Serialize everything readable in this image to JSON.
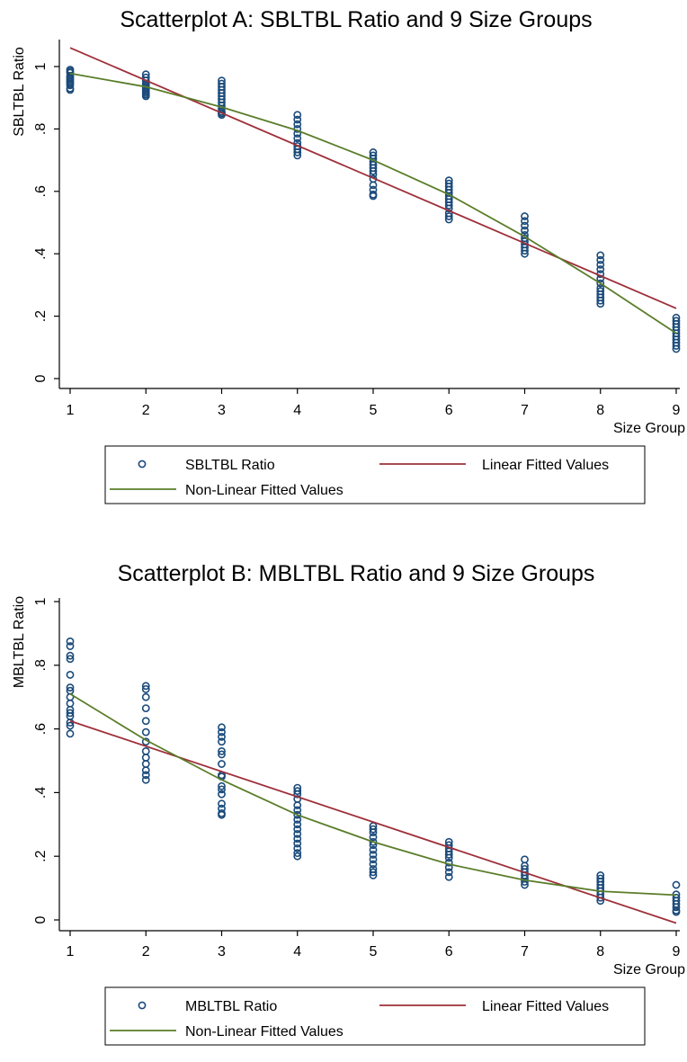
{
  "colors": {
    "scatter": "#1a4a7a",
    "linear": "#9e2f3a",
    "nonlinear": "#5a7d2a",
    "axis": "#000000",
    "background": "#ffffff"
  },
  "chart_data": [
    {
      "type": "scatter",
      "title": "Scatterplot A: SBLTBL Ratio and 9 Size Groups",
      "xlabel": "Size Group",
      "ylabel": "SBLTBL Ratio",
      "xlim": [
        1,
        9
      ],
      "ylim": [
        0,
        1
      ],
      "xticks": [
        "1",
        "2",
        "3",
        "4",
        "5",
        "6",
        "7",
        "8",
        "9"
      ],
      "yticks": [
        "0",
        ".2",
        ".4",
        ".6",
        ".8",
        "1"
      ],
      "grid": false,
      "legend": {
        "placement": "bottom",
        "entries": [
          "SBLTBL Ratio",
          "Linear Fitted Values",
          "Non-Linear Fitted Values"
        ]
      },
      "series": [
        {
          "name": "SBLTBL Ratio",
          "kind": "scatter",
          "points": [
            [
              1,
              0.99
            ],
            [
              1,
              0.985
            ],
            [
              1,
              0.98
            ],
            [
              1,
              0.97
            ],
            [
              1,
              0.965
            ],
            [
              1,
              0.96
            ],
            [
              1,
              0.955
            ],
            [
              1,
              0.95
            ],
            [
              1,
              0.945
            ],
            [
              1,
              0.94
            ],
            [
              1,
              0.93
            ],
            [
              1,
              0.925
            ],
            [
              2,
              0.975
            ],
            [
              2,
              0.965
            ],
            [
              2,
              0.955
            ],
            [
              2,
              0.945
            ],
            [
              2,
              0.94
            ],
            [
              2,
              0.935
            ],
            [
              2,
              0.93
            ],
            [
              2,
              0.925
            ],
            [
              2,
              0.92
            ],
            [
              2,
              0.915
            ],
            [
              2,
              0.91
            ],
            [
              2,
              0.905
            ],
            [
              3,
              0.955
            ],
            [
              3,
              0.945
            ],
            [
              3,
              0.935
            ],
            [
              3,
              0.925
            ],
            [
              3,
              0.915
            ],
            [
              3,
              0.905
            ],
            [
              3,
              0.895
            ],
            [
              3,
              0.885
            ],
            [
              3,
              0.875
            ],
            [
              3,
              0.865
            ],
            [
              3,
              0.855
            ],
            [
              3,
              0.85
            ],
            [
              3,
              0.845
            ],
            [
              4,
              0.845
            ],
            [
              4,
              0.83
            ],
            [
              4,
              0.815
            ],
            [
              4,
              0.8
            ],
            [
              4,
              0.785
            ],
            [
              4,
              0.77
            ],
            [
              4,
              0.755
            ],
            [
              4,
              0.745
            ],
            [
              4,
              0.735
            ],
            [
              4,
              0.725
            ],
            [
              4,
              0.715
            ],
            [
              5,
              0.725
            ],
            [
              5,
              0.715
            ],
            [
              5,
              0.705
            ],
            [
              5,
              0.695
            ],
            [
              5,
              0.685
            ],
            [
              5,
              0.675
            ],
            [
              5,
              0.665
            ],
            [
              5,
              0.655
            ],
            [
              5,
              0.64
            ],
            [
              5,
              0.62
            ],
            [
              5,
              0.605
            ],
            [
              5,
              0.59
            ],
            [
              5,
              0.585
            ],
            [
              6,
              0.635
            ],
            [
              6,
              0.625
            ],
            [
              6,
              0.615
            ],
            [
              6,
              0.605
            ],
            [
              6,
              0.595
            ],
            [
              6,
              0.585
            ],
            [
              6,
              0.575
            ],
            [
              6,
              0.565
            ],
            [
              6,
              0.555
            ],
            [
              6,
              0.545
            ],
            [
              6,
              0.53
            ],
            [
              6,
              0.52
            ],
            [
              6,
              0.51
            ],
            [
              7,
              0.52
            ],
            [
              7,
              0.505
            ],
            [
              7,
              0.49
            ],
            [
              7,
              0.475
            ],
            [
              7,
              0.46
            ],
            [
              7,
              0.45
            ],
            [
              7,
              0.44
            ],
            [
              7,
              0.43
            ],
            [
              7,
              0.42
            ],
            [
              7,
              0.41
            ],
            [
              7,
              0.4
            ],
            [
              8,
              0.395
            ],
            [
              8,
              0.38
            ],
            [
              8,
              0.365
            ],
            [
              8,
              0.35
            ],
            [
              8,
              0.335
            ],
            [
              8,
              0.32
            ],
            [
              8,
              0.305
            ],
            [
              8,
              0.29
            ],
            [
              8,
              0.28
            ],
            [
              8,
              0.27
            ],
            [
              8,
              0.26
            ],
            [
              8,
              0.25
            ],
            [
              8,
              0.24
            ],
            [
              9,
              0.195
            ],
            [
              9,
              0.185
            ],
            [
              9,
              0.175
            ],
            [
              9,
              0.165
            ],
            [
              9,
              0.155
            ],
            [
              9,
              0.145
            ],
            [
              9,
              0.135
            ],
            [
              9,
              0.125
            ],
            [
              9,
              0.115
            ],
            [
              9,
              0.105
            ],
            [
              9,
              0.095
            ]
          ]
        },
        {
          "name": "Linear Fitted Values",
          "kind": "line",
          "x": [
            1,
            9
          ],
          "y": [
            1.06,
            0.225
          ]
        },
        {
          "name": "Non-Linear Fitted Values",
          "kind": "line",
          "x": [
            1,
            2,
            3,
            4,
            5,
            6,
            7,
            8,
            9
          ],
          "y": [
            0.978,
            0.935,
            0.87,
            0.795,
            0.7,
            0.59,
            0.455,
            0.305,
            0.145
          ]
        }
      ]
    },
    {
      "type": "scatter",
      "title": "Scatterplot B: MBLTBL Ratio and 9 Size Groups",
      "xlabel": "Size Group",
      "ylabel": "MBLTBL Ratio",
      "xlim": [
        1,
        9
      ],
      "ylim": [
        0,
        1
      ],
      "xticks": [
        "1",
        "2",
        "3",
        "4",
        "5",
        "6",
        "7",
        "8",
        "9"
      ],
      "yticks": [
        "0",
        ".2",
        ".4",
        ".6",
        ".8",
        "1"
      ],
      "grid": false,
      "legend": {
        "placement": "bottom",
        "entries": [
          "MBLTBL Ratio",
          "Linear Fitted Values",
          "Non-Linear Fitted Values"
        ]
      },
      "series": [
        {
          "name": "MBLTBL Ratio",
          "kind": "scatter",
          "points": [
            [
              1,
              0.875
            ],
            [
              1,
              0.86
            ],
            [
              1,
              0.83
            ],
            [
              1,
              0.82
            ],
            [
              1,
              0.77
            ],
            [
              1,
              0.73
            ],
            [
              1,
              0.72
            ],
            [
              1,
              0.7
            ],
            [
              1,
              0.68
            ],
            [
              1,
              0.66
            ],
            [
              1,
              0.65
            ],
            [
              1,
              0.64
            ],
            [
              1,
              0.62
            ],
            [
              1,
              0.61
            ],
            [
              1,
              0.585
            ],
            [
              2,
              0.735
            ],
            [
              2,
              0.725
            ],
            [
              2,
              0.7
            ],
            [
              2,
              0.665
            ],
            [
              2,
              0.625
            ],
            [
              2,
              0.59
            ],
            [
              2,
              0.56
            ],
            [
              2,
              0.53
            ],
            [
              2,
              0.51
            ],
            [
              2,
              0.49
            ],
            [
              2,
              0.47
            ],
            [
              2,
              0.455
            ],
            [
              2,
              0.44
            ],
            [
              3,
              0.605
            ],
            [
              3,
              0.59
            ],
            [
              3,
              0.575
            ],
            [
              3,
              0.56
            ],
            [
              3,
              0.53
            ],
            [
              3,
              0.52
            ],
            [
              3,
              0.49
            ],
            [
              3,
              0.455
            ],
            [
              3,
              0.45
            ],
            [
              3,
              0.42
            ],
            [
              3,
              0.41
            ],
            [
              3,
              0.395
            ],
            [
              3,
              0.365
            ],
            [
              3,
              0.35
            ],
            [
              3,
              0.335
            ],
            [
              3,
              0.33
            ],
            [
              4,
              0.415
            ],
            [
              4,
              0.405
            ],
            [
              4,
              0.395
            ],
            [
              4,
              0.38
            ],
            [
              4,
              0.36
            ],
            [
              4,
              0.345
            ],
            [
              4,
              0.33
            ],
            [
              4,
              0.315
            ],
            [
              4,
              0.3
            ],
            [
              4,
              0.285
            ],
            [
              4,
              0.27
            ],
            [
              4,
              0.255
            ],
            [
              4,
              0.24
            ],
            [
              4,
              0.225
            ],
            [
              4,
              0.21
            ],
            [
              4,
              0.2
            ],
            [
              5,
              0.295
            ],
            [
              5,
              0.285
            ],
            [
              5,
              0.275
            ],
            [
              5,
              0.26
            ],
            [
              5,
              0.245
            ],
            [
              5,
              0.235
            ],
            [
              5,
              0.22
            ],
            [
              5,
              0.205
            ],
            [
              5,
              0.19
            ],
            [
              5,
              0.175
            ],
            [
              5,
              0.16
            ],
            [
              5,
              0.15
            ],
            [
              5,
              0.14
            ],
            [
              6,
              0.245
            ],
            [
              6,
              0.235
            ],
            [
              6,
              0.225
            ],
            [
              6,
              0.215
            ],
            [
              6,
              0.205
            ],
            [
              6,
              0.195
            ],
            [
              6,
              0.18
            ],
            [
              6,
              0.165
            ],
            [
              6,
              0.15
            ],
            [
              6,
              0.135
            ],
            [
              7,
              0.19
            ],
            [
              7,
              0.17
            ],
            [
              7,
              0.16
            ],
            [
              7,
              0.15
            ],
            [
              7,
              0.14
            ],
            [
              7,
              0.13
            ],
            [
              7,
              0.12
            ],
            [
              7,
              0.11
            ],
            [
              8,
              0.14
            ],
            [
              8,
              0.13
            ],
            [
              8,
              0.12
            ],
            [
              8,
              0.11
            ],
            [
              8,
              0.1
            ],
            [
              8,
              0.09
            ],
            [
              8,
              0.08
            ],
            [
              8,
              0.07
            ],
            [
              8,
              0.06
            ],
            [
              9,
              0.11
            ],
            [
              9,
              0.08
            ],
            [
              9,
              0.07
            ],
            [
              9,
              0.06
            ],
            [
              9,
              0.05
            ],
            [
              9,
              0.04
            ],
            [
              9,
              0.03
            ],
            [
              9,
              0.025
            ]
          ]
        },
        {
          "name": "Linear Fitted Values",
          "kind": "line",
          "x": [
            1,
            9
          ],
          "y": [
            0.625,
            -0.01
          ]
        },
        {
          "name": "Non-Linear Fitted Values",
          "kind": "line",
          "x": [
            1,
            2,
            3,
            4,
            5,
            6,
            7,
            8,
            9
          ],
          "y": [
            0.71,
            0.565,
            0.44,
            0.33,
            0.245,
            0.175,
            0.125,
            0.09,
            0.078
          ]
        }
      ]
    }
  ]
}
